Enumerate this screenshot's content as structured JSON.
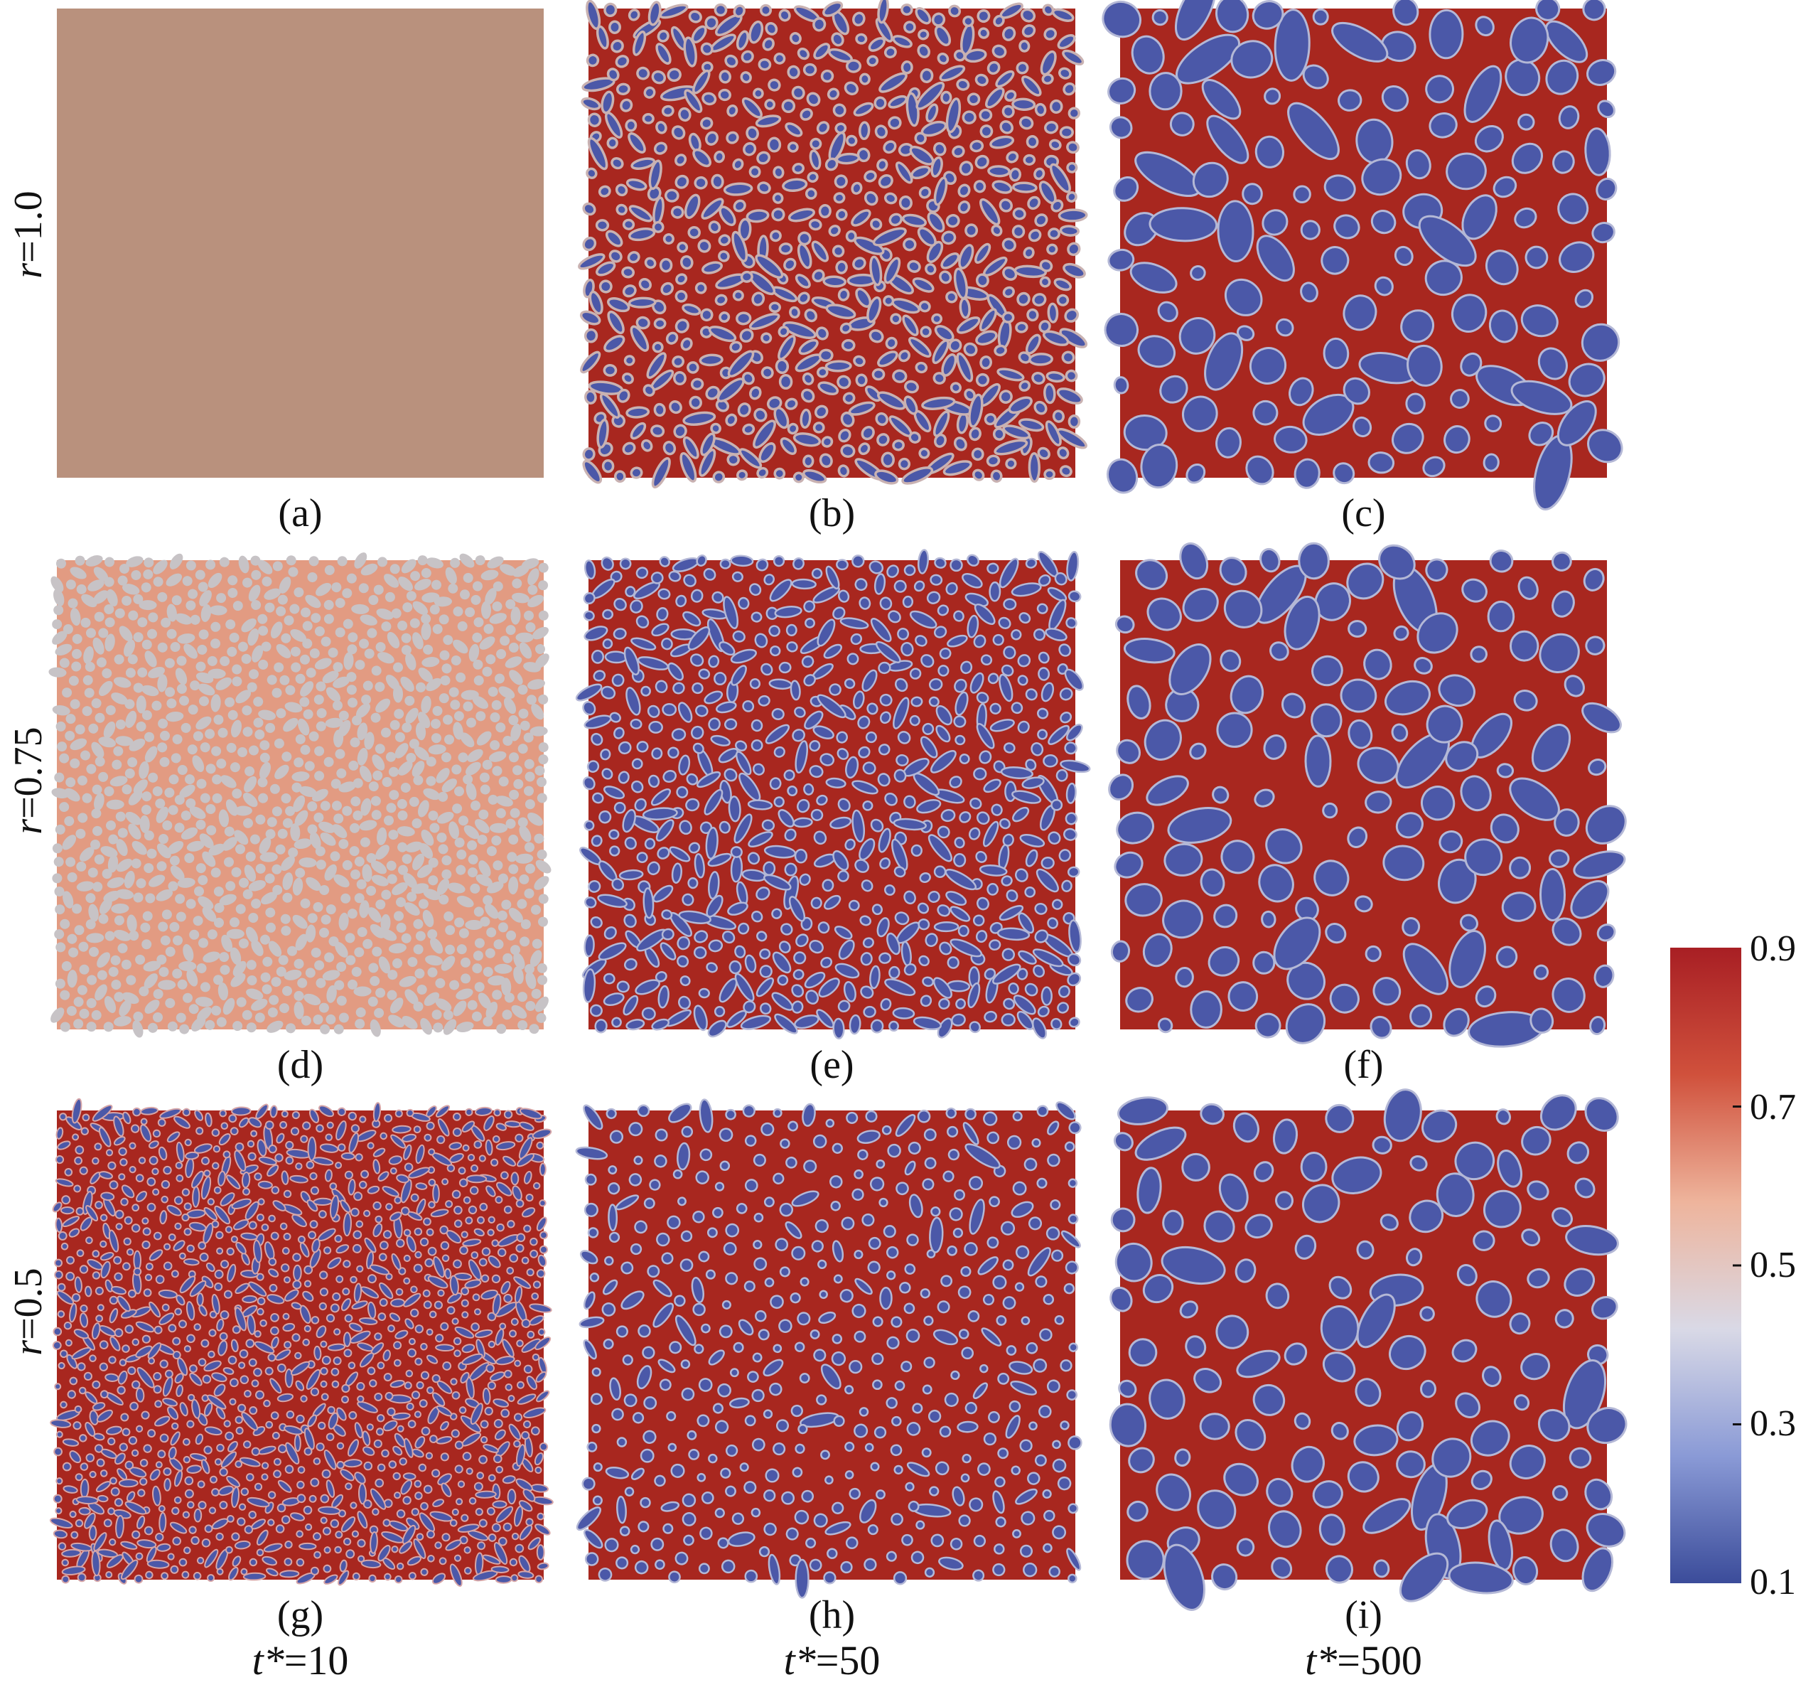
{
  "rows": [
    {
      "label_var": "r",
      "label_val": "=1.0"
    },
    {
      "label_var": "r",
      "label_val": "=0.75"
    },
    {
      "label_var": "r",
      "label_val": "=0.5"
    }
  ],
  "columns": [
    {
      "label_var": "t*",
      "label_val": "=10"
    },
    {
      "label_var": "t*",
      "label_val": "=50"
    },
    {
      "label_var": "t*",
      "label_val": "=500"
    }
  ],
  "panels": [
    {
      "id": "a",
      "label": "(a)",
      "style": "uniform"
    },
    {
      "id": "b",
      "label": "(b)",
      "style": "worms"
    },
    {
      "id": "c",
      "label": "(c)",
      "style": "blobs-large"
    },
    {
      "id": "d",
      "label": "(d)",
      "style": "faint"
    },
    {
      "id": "e",
      "label": "(e)",
      "style": "worms-dark"
    },
    {
      "id": "f",
      "label": "(f)",
      "style": "blobs-large"
    },
    {
      "id": "g",
      "label": "(g)",
      "style": "fine"
    },
    {
      "id": "h",
      "label": "(h)",
      "style": "dots-medium"
    },
    {
      "id": "i",
      "label": "(i)",
      "style": "blobs-large"
    }
  ],
  "colorbar": {
    "ticks": [
      "0.9",
      "0.7",
      "0.5",
      "0.3",
      "0.1"
    ],
    "min": 0.1,
    "max": 0.9,
    "colors": [
      "#3b4c9a",
      "#8a9ad6",
      "#d9d9e6",
      "#eeb49c",
      "#d0513c",
      "#a81f24"
    ]
  },
  "colors": {
    "matrix": "#a8271f",
    "droplet": "#4b58a8",
    "rim": "#b4b8d6",
    "uniform": "#b9917d",
    "faint_base": "#e29b82",
    "faint_spot": "#c7c3c6"
  }
}
